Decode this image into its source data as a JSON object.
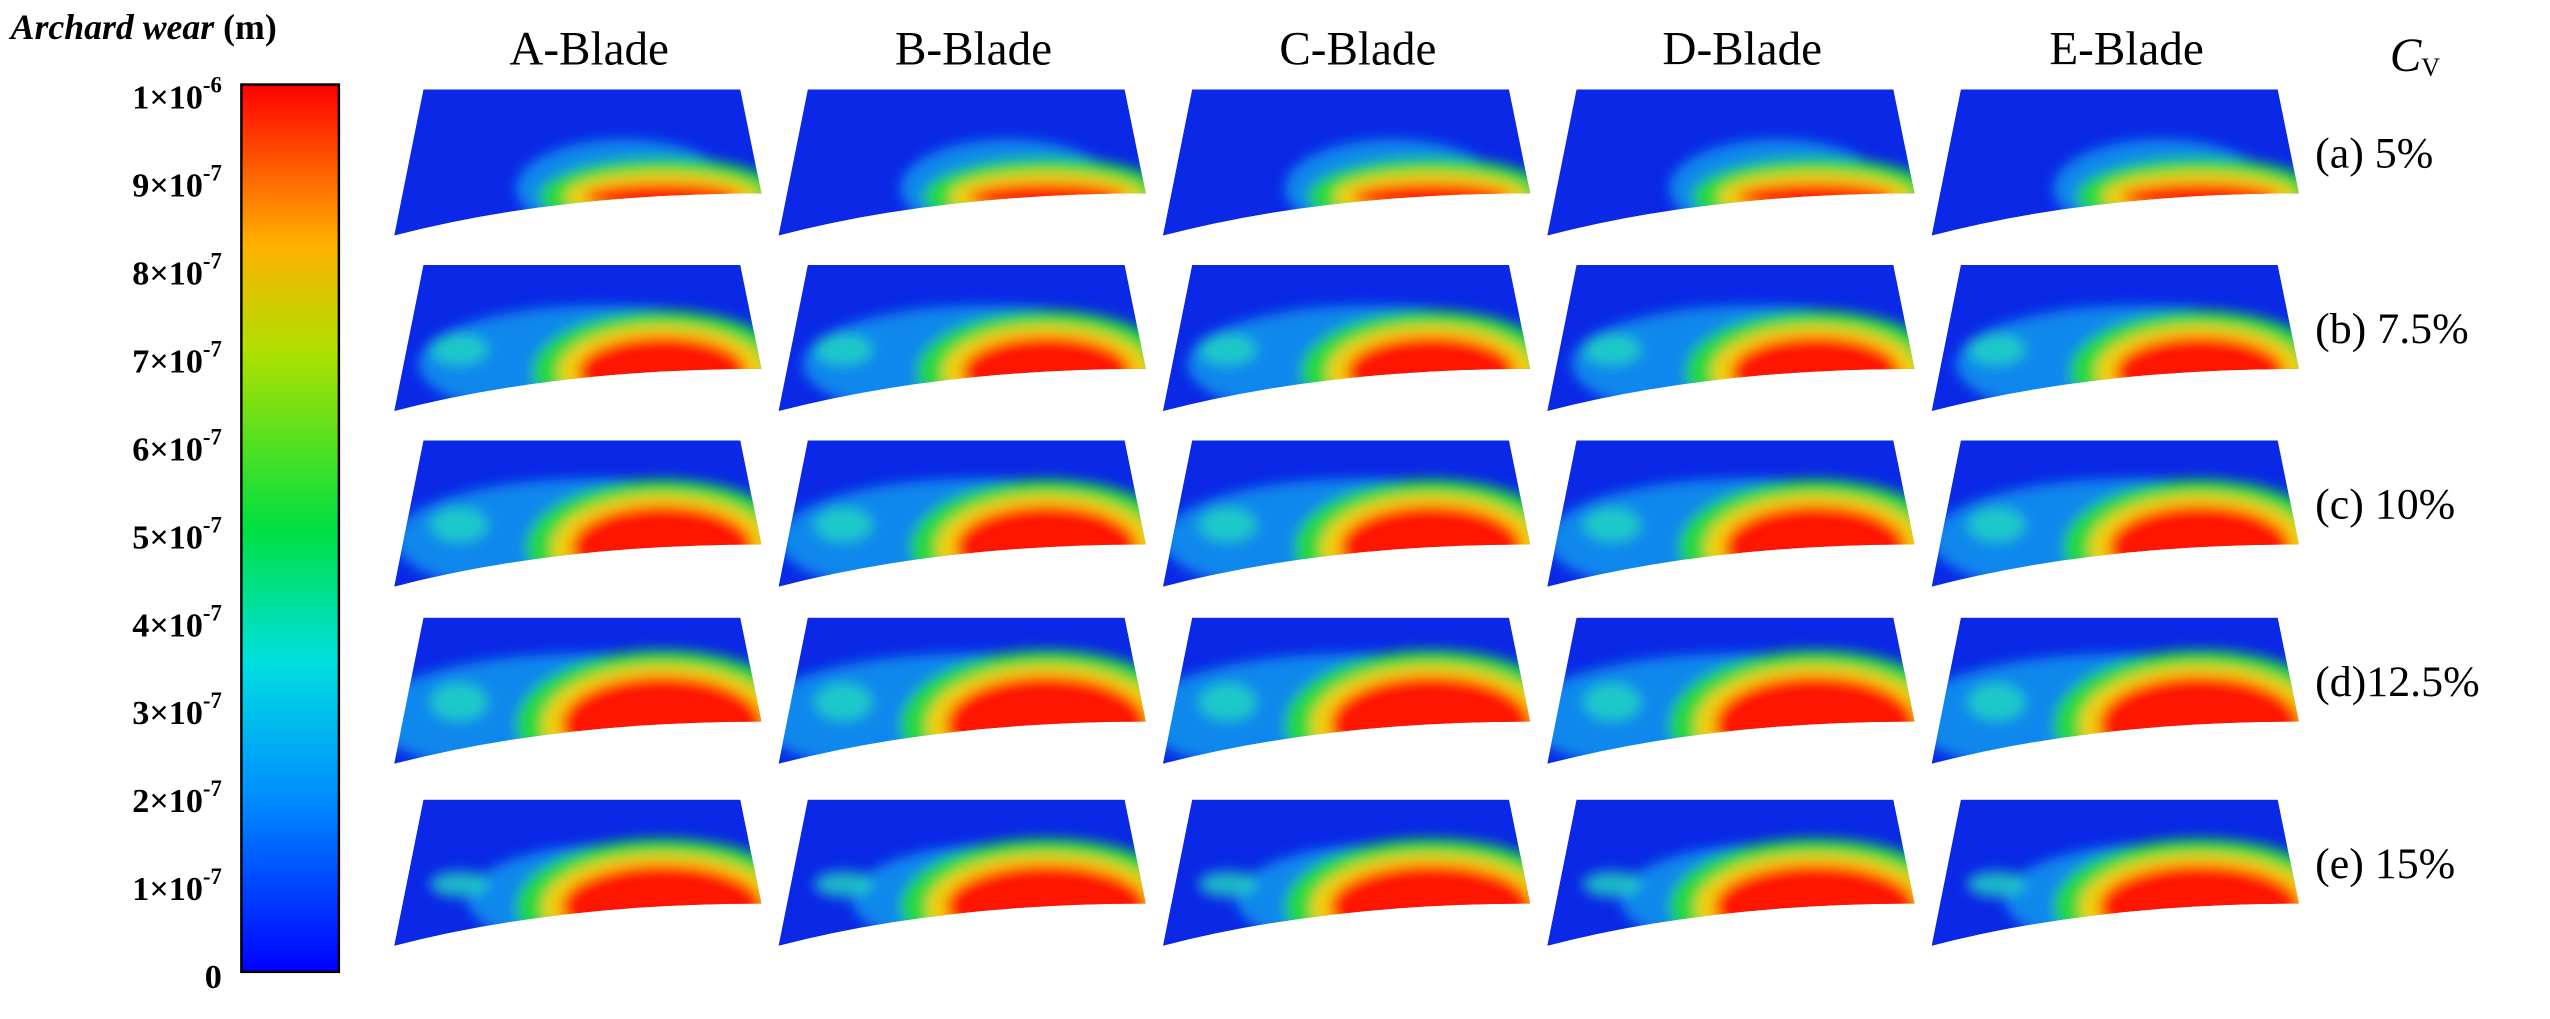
{
  "colorbar": {
    "title": {
      "name": "Archard wear",
      "unit": "(m)"
    },
    "lim": [
      0,
      1e-06
    ],
    "ticks": [
      {
        "value": 1e-06,
        "base": "1×10",
        "exponent": "-6"
      },
      {
        "value": 9e-07,
        "base": "9×10",
        "exponent": "-7"
      },
      {
        "value": 8e-07,
        "base": "8×10",
        "exponent": "-7"
      },
      {
        "value": 7e-07,
        "base": "7×10",
        "exponent": "-7"
      },
      {
        "value": 6e-07,
        "base": "6×10",
        "exponent": "-7"
      },
      {
        "value": 5e-07,
        "base": "5×10",
        "exponent": "-7"
      },
      {
        "value": 4e-07,
        "base": "4×10",
        "exponent": "-7"
      },
      {
        "value": 3e-07,
        "base": "3×10",
        "exponent": "-7"
      },
      {
        "value": 2e-07,
        "base": "2×10",
        "exponent": "-7"
      },
      {
        "value": 1e-07,
        "base": "1×10",
        "exponent": "-7"
      },
      {
        "value": 0,
        "base": "0"
      }
    ]
  },
  "columns": [
    "A-Blade",
    "B-Blade",
    "C-Blade",
    "D-Blade",
    "E-Blade"
  ],
  "row_header": {
    "symbol": "C",
    "subscript": "V"
  },
  "rows": [
    "(a) 5%",
    "(b) 7.5%",
    "(c) 10%",
    "(d)12.5%",
    "(e) 15%"
  ]
}
